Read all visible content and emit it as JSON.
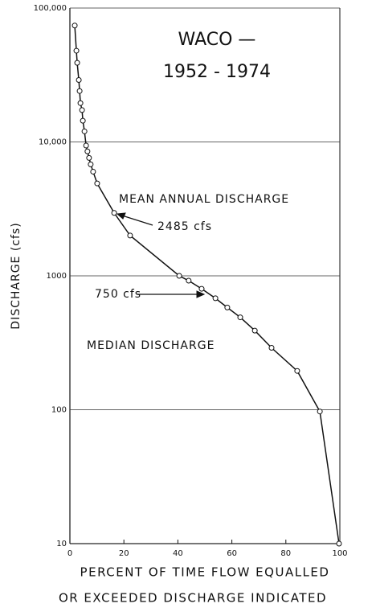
{
  "chart_data": {
    "type": "line",
    "title": "WACO —",
    "subtitle": "1952 - 1974",
    "xlabel": [
      "PERCENT OF TIME FLOW EQUALLED",
      "OR EXCEEDED DISCHARGE INDICATED"
    ],
    "ylabel": "DISCHARGE (cfs)",
    "log_y": true,
    "grid": true,
    "color": "#111111",
    "xlim": [
      0,
      100
    ],
    "xticks": [
      0,
      20,
      40,
      60,
      80,
      100
    ],
    "ylim": [
      10,
      100000
    ],
    "yticks": [
      10,
      100,
      1000,
      {
        "value": 10000,
        "label": "10,000"
      },
      {
        "value": 100000,
        "label": "100,000"
      }
    ],
    "annotations": [
      {
        "text": "MEAN  ANNUAL  DISCHARGE"
      },
      {
        "text": "2485 cfs"
      },
      {
        "text": "750 cfs"
      },
      {
        "text": "MEDIAN  DISCHARGE"
      }
    ],
    "series": [
      {
        "name": "Flow duration",
        "x": [
          1.8,
          2.4,
          2.7,
          3.3,
          3.6,
          3.9,
          4.5,
          4.8,
          5.4,
          6.0,
          6.5,
          7.1,
          7.7,
          8.6,
          10.1,
          16.4,
          22.3,
          40.5,
          44,
          48.8,
          53.9,
          58.3,
          63.1,
          68.5,
          74.7,
          84.2,
          92.6,
          99.7
        ],
        "values": [
          74000,
          48000,
          39000,
          29000,
          24000,
          19500,
          17300,
          14400,
          12000,
          9400,
          8500,
          7600,
          6800,
          6000,
          4900,
          2950,
          2000,
          1000,
          920,
          800,
          680,
          580,
          490,
          390,
          290,
          195,
          97,
          10
        ]
      }
    ]
  }
}
